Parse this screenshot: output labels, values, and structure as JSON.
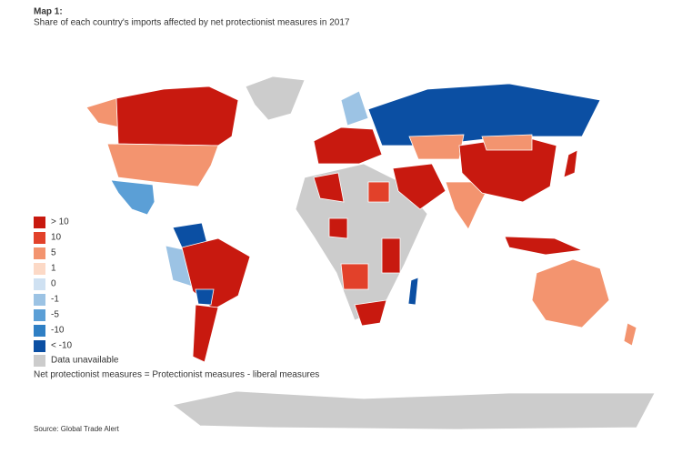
{
  "header": {
    "label": "Map 1:",
    "title": "Share of each country's imports affected by net protectionist measures in 2017"
  },
  "legend": {
    "items": [
      {
        "label": "> 10",
        "color": "#c8190f"
      },
      {
        "label": "10",
        "color": "#e2412a"
      },
      {
        "label": "5",
        "color": "#f3946f"
      },
      {
        "label": "1",
        "color": "#fcd9c6"
      },
      {
        "label": "0",
        "color": "#cfe1f2"
      },
      {
        "label": "-1",
        "color": "#9cc3e4"
      },
      {
        "label": "-5",
        "color": "#5b9fd6"
      },
      {
        "label": "-10",
        "color": "#2f7fc4"
      },
      {
        "label": "< -10",
        "color": "#0b4fa3"
      }
    ],
    "unavailable": {
      "label": "Data unavailable",
      "color": "#cccccc"
    }
  },
  "note": "Net protectionist measures = Protectionist measures - liberal measures",
  "source": "Source: Global Trade Alert"
}
